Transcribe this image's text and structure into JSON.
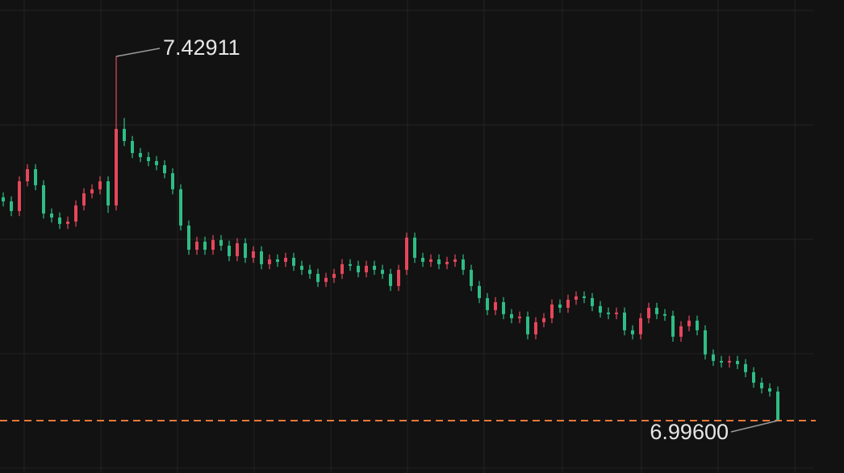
{
  "chart_data": {
    "type": "candlestick",
    "up_color": "#e5475b",
    "down_color": "#2ebd85",
    "last_line_color": "#e8793a",
    "ylim": [
      6.9337,
      7.4962
    ],
    "annotations": {
      "max": "7.42911",
      "last": "6.99600"
    },
    "open": [
      7.2615,
      7.2567,
      7.2452,
      7.2806,
      7.295,
      7.2759,
      7.2423,
      7.2375,
      7.2299,
      7.2327,
      7.2519,
      7.2663,
      7.2711,
      7.2806,
      7.2519,
      7.3429,
      7.3285,
      7.3142,
      7.3094,
      7.3046,
      7.2998,
      7.2902,
      7.2711,
      7.228,
      7.1992,
      7.2088,
      7.1992,
      7.2107,
      7.204,
      7.1916,
      7.2069,
      7.1896,
      7.1973,
      7.182,
      7.1877,
      7.1848,
      7.1896,
      7.1801,
      7.1753,
      7.1705,
      7.1609,
      7.1657,
      7.1705,
      7.182,
      7.1801,
      7.1724,
      7.1801,
      7.1753,
      7.1705,
      7.1561,
      7.1753,
      7.2136,
      7.1896,
      7.1848,
      7.1877,
      7.182,
      7.1848,
      7.1877,
      7.1753,
      7.1561,
      7.1417,
      7.1274,
      7.1369,
      7.1226,
      7.1178,
      7.1197,
      7.0986,
      7.113,
      7.1178,
      7.1341,
      7.1302,
      7.1398,
      7.1437,
      7.1417,
      7.1322,
      7.1245,
      7.1226,
      7.1245,
      7.1034,
      7.0986,
      7.1178,
      7.1302,
      7.1226,
      7.1207,
      7.0958,
      7.1082,
      7.1149,
      7.1034,
      7.0747,
      7.067,
      7.0651,
      7.067,
      7.0632,
      7.0536,
      7.0411,
      7.0344,
      7.0306
    ],
    "high": [
      7.2675,
      7.2627,
      7.2866,
      7.301,
      7.301,
      7.2819,
      7.2483,
      7.2435,
      7.2387,
      7.2579,
      7.2723,
      7.2771,
      7.2866,
      7.2866,
      7.42911,
      7.356,
      7.3345,
      7.3202,
      7.3154,
      7.3106,
      7.3058,
      7.2962,
      7.2771,
      7.234,
      7.2148,
      7.2148,
      7.2167,
      7.2167,
      7.21,
      7.2129,
      7.2129,
      7.2033,
      7.2033,
      7.1937,
      7.1937,
      7.1956,
      7.1956,
      7.1861,
      7.1813,
      7.1765,
      7.1717,
      7.1765,
      7.188,
      7.188,
      7.1861,
      7.1861,
      7.1861,
      7.1813,
      7.1765,
      7.1813,
      7.2196,
      7.2196,
      7.1956,
      7.1937,
      7.1937,
      7.1908,
      7.1937,
      7.1937,
      7.1813,
      7.1621,
      7.1477,
      7.1429,
      7.1429,
      7.1286,
      7.1257,
      7.1257,
      7.119,
      7.1238,
      7.1401,
      7.1401,
      7.1458,
      7.1497,
      7.1497,
      7.1477,
      7.1382,
      7.1305,
      7.1305,
      7.1305,
      7.1094,
      7.1238,
      7.1362,
      7.1362,
      7.1286,
      7.1267,
      7.1142,
      7.1209,
      7.1209,
      7.1094,
      7.0807,
      7.073,
      7.073,
      7.073,
      7.0692,
      7.0596,
      7.0471,
      7.0404,
      7.0366
    ],
    "low": [
      7.2507,
      7.2392,
      7.2392,
      7.2746,
      7.2699,
      7.2363,
      7.2315,
      7.2239,
      7.2239,
      7.2267,
      7.2459,
      7.2603,
      7.2651,
      7.243,
      7.2459,
      7.3225,
      7.3082,
      7.3034,
      7.2986,
      7.2938,
      7.2842,
      7.2651,
      7.222,
      7.1932,
      7.1932,
      7.1932,
      7.1932,
      7.198,
      7.1856,
      7.1856,
      7.1836,
      7.1836,
      7.176,
      7.176,
      7.1788,
      7.1788,
      7.1741,
      7.1693,
      7.1645,
      7.1549,
      7.1549,
      7.1597,
      7.1645,
      7.1741,
      7.1664,
      7.1664,
      7.1693,
      7.1645,
      7.1501,
      7.1501,
      7.1693,
      7.1836,
      7.1788,
      7.1788,
      7.176,
      7.176,
      7.1788,
      7.1693,
      7.1501,
      7.1357,
      7.1214,
      7.1214,
      7.1166,
      7.1118,
      7.1118,
      7.0926,
      7.0926,
      7.107,
      7.1118,
      7.1242,
      7.1242,
      7.1338,
      7.1357,
      7.1262,
      7.1185,
      7.1166,
      7.1166,
      7.0974,
      7.0926,
      7.0926,
      7.1118,
      7.1166,
      7.1147,
      7.0898,
      7.0898,
      7.1022,
      7.0974,
      7.0687,
      7.061,
      7.0591,
      7.0591,
      7.0572,
      7.0476,
      7.0351,
      7.0284,
      7.0246,
      6.996
    ],
    "close": [
      7.2567,
      7.2452,
      7.2806,
      7.295,
      7.2759,
      7.2423,
      7.2375,
      7.2299,
      7.2327,
      7.2519,
      7.2663,
      7.2711,
      7.2806,
      7.2519,
      7.3429,
      7.3285,
      7.3142,
      7.3094,
      7.3046,
      7.2998,
      7.2902,
      7.2711,
      7.228,
      7.1992,
      7.2088,
      7.1992,
      7.2107,
      7.204,
      7.1916,
      7.2069,
      7.1896,
      7.1973,
      7.182,
      7.1877,
      7.1848,
      7.1896,
      7.1801,
      7.1753,
      7.1705,
      7.1609,
      7.1657,
      7.1705,
      7.182,
      7.1801,
      7.1724,
      7.1801,
      7.1753,
      7.1705,
      7.1561,
      7.1753,
      7.2136,
      7.1896,
      7.1848,
      7.1877,
      7.182,
      7.1848,
      7.1877,
      7.1753,
      7.1561,
      7.1417,
      7.1274,
      7.1369,
      7.1226,
      7.1178,
      7.1197,
      7.0986,
      7.113,
      7.1178,
      7.1341,
      7.1302,
      7.1398,
      7.1437,
      7.1417,
      7.1322,
      7.1245,
      7.1226,
      7.1245,
      7.1034,
      7.0986,
      7.1178,
      7.1302,
      7.1226,
      7.1207,
      7.0958,
      7.1082,
      7.1149,
      7.1034,
      7.0747,
      7.067,
      7.0651,
      7.067,
      7.0632,
      7.0536,
      7.0411,
      7.0344,
      7.0306,
      6.996
    ]
  }
}
